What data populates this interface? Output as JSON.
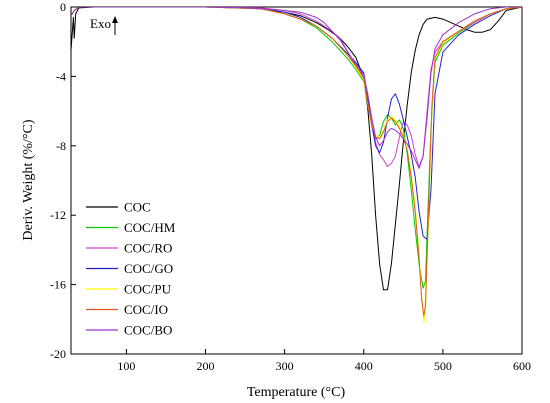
{
  "chart_data": {
    "type": "line",
    "title": "",
    "xlabel": "Temperature (°C)",
    "ylabel": "Deriv. Weight (%/°C)",
    "xlim": [
      30,
      600
    ],
    "ylim": [
      -20,
      0
    ],
    "x_ticks": [
      100,
      200,
      300,
      400,
      500,
      600
    ],
    "x_tick_labels": [
      "100",
      "200",
      "300",
      "400",
      "500",
      "600"
    ],
    "y_ticks": [
      0,
      -4,
      -8,
      -12,
      -16,
      -20
    ],
    "y_tick_labels": [
      "0",
      "-4",
      "-8",
      "-12",
      "-16",
      "-20"
    ],
    "grid": false,
    "legend_position": "bottom-left",
    "annotation": "Exo",
    "annotation_icon": "up-arrow-icon",
    "series": [
      {
        "name": "COC",
        "color": "#000000",
        "x": [
          30,
          33,
          34,
          36,
          40,
          60,
          100,
          150,
          200,
          240,
          270,
          300,
          320,
          340,
          355,
          370,
          380,
          390,
          395,
          400,
          405,
          410,
          415,
          420,
          425,
          430,
          435,
          440,
          445,
          450,
          455,
          460,
          465,
          470,
          475,
          480,
          490,
          500,
          510,
          520,
          530,
          540,
          550,
          560,
          570,
          580,
          600
        ],
        "y": [
          -2.5,
          -0.6,
          -1.8,
          -0.4,
          -0.05,
          0,
          0,
          0,
          0,
          -0.05,
          -0.1,
          -0.3,
          -0.5,
          -0.9,
          -1.3,
          -1.8,
          -2.3,
          -2.9,
          -3.5,
          -4.2,
          -5.8,
          -8.5,
          -12.0,
          -14.8,
          -16.3,
          -16.3,
          -14.8,
          -12.5,
          -10.2,
          -7.8,
          -5.6,
          -3.8,
          -2.5,
          -1.6,
          -1.0,
          -0.7,
          -0.6,
          -0.7,
          -0.9,
          -1.1,
          -1.3,
          -1.45,
          -1.45,
          -1.3,
          -0.8,
          -0.2,
          0
        ]
      },
      {
        "name": "COC/HM",
        "color": "#00cc00",
        "x": [
          30,
          34,
          40,
          100,
          200,
          270,
          300,
          320,
          340,
          360,
          380,
          390,
          400,
          405,
          410,
          415,
          420,
          425,
          430,
          435,
          440,
          445,
          450,
          455,
          460,
          465,
          470,
          475,
          478,
          480,
          485,
          490,
          500,
          520,
          540,
          560,
          580,
          600
        ],
        "y": [
          -0.5,
          -0.2,
          0,
          0,
          0,
          -0.1,
          -0.4,
          -0.7,
          -1.2,
          -2.0,
          -3.0,
          -3.6,
          -4.3,
          -5.5,
          -6.8,
          -7.6,
          -7.4,
          -6.6,
          -6.2,
          -6.4,
          -6.8,
          -6.5,
          -7.0,
          -8.5,
          -10.5,
          -12.8,
          -14.8,
          -16.2,
          -15.8,
          -13.0,
          -7.0,
          -3.2,
          -2.2,
          -1.5,
          -0.9,
          -0.4,
          -0.1,
          0
        ]
      },
      {
        "name": "COC/RO",
        "color": "#cc44cc",
        "x": [
          30,
          34,
          40,
          100,
          200,
          270,
          300,
          320,
          340,
          360,
          370,
          380,
          390,
          400,
          405,
          410,
          415,
          420,
          425,
          430,
          435,
          440,
          445,
          450,
          455,
          460,
          465,
          470,
          475,
          480,
          485,
          490,
          500,
          520,
          540,
          560,
          580,
          600
        ],
        "y": [
          -0.5,
          -0.2,
          0,
          0,
          0,
          -0.05,
          -0.2,
          -0.4,
          -0.8,
          -1.4,
          -1.8,
          -2.6,
          -3.4,
          -4.0,
          -5.2,
          -6.7,
          -7.8,
          -8.5,
          -8.8,
          -9.2,
          -9.0,
          -8.6,
          -7.5,
          -6.6,
          -6.8,
          -7.4,
          -8.5,
          -9.2,
          -8.6,
          -6.0,
          -3.6,
          -2.6,
          -2.0,
          -1.4,
          -0.9,
          -0.4,
          -0.1,
          0
        ]
      },
      {
        "name": "COC/GO",
        "color": "#2222cc",
        "x": [
          30,
          34,
          40,
          100,
          200,
          270,
          300,
          320,
          340,
          360,
          380,
          390,
          400,
          405,
          410,
          415,
          420,
          425,
          430,
          435,
          440,
          445,
          450,
          455,
          460,
          465,
          470,
          475,
          480,
          485,
          490,
          500,
          520,
          540,
          560,
          580,
          600
        ],
        "y": [
          -0.5,
          -0.2,
          0,
          0,
          0,
          -0.1,
          -0.3,
          -0.6,
          -1.1,
          -1.8,
          -2.7,
          -3.2,
          -3.8,
          -5.2,
          -6.8,
          -8.0,
          -8.4,
          -7.8,
          -6.4,
          -5.3,
          -5.0,
          -5.6,
          -6.5,
          -7.5,
          -8.5,
          -9.8,
          -11.8,
          -13.2,
          -13.4,
          -10.5,
          -5.0,
          -2.6,
          -1.6,
          -1.0,
          -0.5,
          -0.1,
          0
        ]
      },
      {
        "name": "COC/PU",
        "color": "#ffff00",
        "x": [
          30,
          34,
          40,
          100,
          200,
          270,
          300,
          320,
          340,
          360,
          380,
          390,
          400,
          405,
          410,
          415,
          420,
          425,
          430,
          435,
          440,
          445,
          450,
          455,
          460,
          465,
          470,
          473,
          476,
          478,
          482,
          486,
          490,
          500,
          520,
          540,
          560,
          580,
          600
        ],
        "y": [
          -0.5,
          -0.2,
          0,
          0,
          0,
          -0.1,
          -0.4,
          -0.7,
          -1.1,
          -1.8,
          -2.8,
          -3.5,
          -4.2,
          -5.6,
          -6.8,
          -7.4,
          -7.5,
          -7.1,
          -6.5,
          -6.3,
          -6.5,
          -6.9,
          -7.4,
          -8.2,
          -9.6,
          -11.5,
          -14.2,
          -16.5,
          -18.2,
          -17.6,
          -12.0,
          -6.0,
          -3.0,
          -2.1,
          -1.4,
          -0.8,
          -0.4,
          -0.1,
          0
        ]
      },
      {
        "name": "COC/IO",
        "color": "#e05a1a",
        "x": [
          30,
          34,
          40,
          100,
          200,
          270,
          300,
          320,
          340,
          360,
          380,
          390,
          400,
          405,
          410,
          415,
          420,
          425,
          430,
          435,
          440,
          445,
          450,
          455,
          460,
          465,
          470,
          473,
          476,
          478,
          482,
          486,
          490,
          500,
          520,
          540,
          560,
          580,
          600
        ],
        "y": [
          -0.5,
          -0.2,
          0,
          0,
          0,
          -0.1,
          -0.4,
          -0.7,
          -1.1,
          -1.8,
          -2.8,
          -3.4,
          -4.1,
          -5.5,
          -6.8,
          -7.5,
          -7.6,
          -7.2,
          -6.6,
          -6.4,
          -6.6,
          -7.0,
          -7.5,
          -8.3,
          -9.8,
          -11.8,
          -14.5,
          -16.8,
          -17.8,
          -17.2,
          -11.5,
          -5.8,
          -2.9,
          -2.0,
          -1.4,
          -0.8,
          -0.4,
          -0.1,
          0
        ]
      },
      {
        "name": "COC/BO",
        "color": "#9933cc",
        "x": [
          30,
          34,
          40,
          100,
          200,
          250,
          270,
          300,
          320,
          340,
          350,
          360,
          370,
          380,
          390,
          400,
          405,
          410,
          415,
          420,
          425,
          430,
          435,
          440,
          445,
          450,
          455,
          460,
          465,
          470,
          475,
          480,
          485,
          490,
          500,
          520,
          540,
          560,
          580,
          600
        ],
        "y": [
          -0.5,
          -0.2,
          0,
          0,
          0,
          -0.05,
          -0.1,
          -0.2,
          -0.3,
          -0.6,
          -0.9,
          -1.4,
          -1.9,
          -2.6,
          -3.3,
          -3.9,
          -5.0,
          -6.4,
          -7.5,
          -8.0,
          -7.7,
          -7.2,
          -7.0,
          -7.1,
          -7.3,
          -7.6,
          -7.9,
          -8.3,
          -8.8,
          -9.3,
          -8.6,
          -6.4,
          -3.8,
          -2.4,
          -1.6,
          -0.9,
          -0.4,
          -0.1,
          0,
          0
        ]
      }
    ]
  }
}
